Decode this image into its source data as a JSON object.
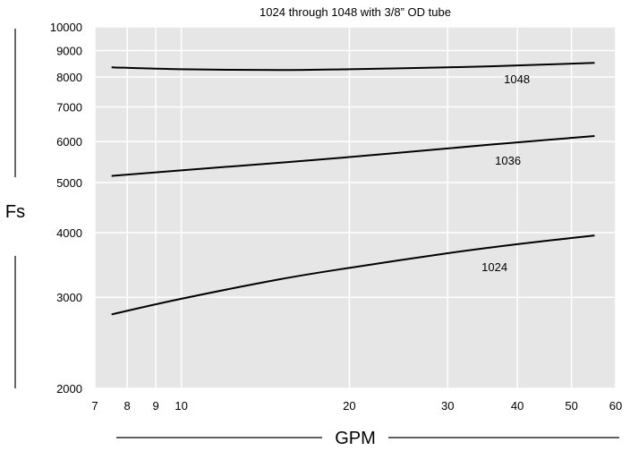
{
  "chart_data": {
    "type": "line",
    "title": "1024 through 1048 with 3/8” OD tube",
    "xlabel": "GPM",
    "ylabel": "Fs",
    "x_scale": "log",
    "y_scale": "log",
    "xlim": [
      7,
      60
    ],
    "ylim": [
      2000,
      10000
    ],
    "x_ticks": [
      7,
      8,
      9,
      10,
      20,
      30,
      40,
      50,
      60
    ],
    "y_ticks": [
      2000,
      3000,
      4000,
      5000,
      6000,
      7000,
      8000,
      9000,
      10000
    ],
    "grid": true,
    "plot_background": "#e6e6e6",
    "grid_color": "#ffffff",
    "series": [
      {
        "name": "1048",
        "color": "#000000",
        "points": [
          [
            7.5,
            8350
          ],
          [
            10,
            8280
          ],
          [
            15,
            8250
          ],
          [
            20,
            8280
          ],
          [
            30,
            8350
          ],
          [
            40,
            8420
          ],
          [
            55,
            8520
          ]
        ]
      },
      {
        "name": "1036",
        "color": "#000000",
        "points": [
          [
            7.5,
            5150
          ],
          [
            10,
            5280
          ],
          [
            15,
            5460
          ],
          [
            20,
            5600
          ],
          [
            30,
            5820
          ],
          [
            40,
            5980
          ],
          [
            55,
            6150
          ]
        ]
      },
      {
        "name": "1024",
        "color": "#000000",
        "points": [
          [
            7.5,
            2780
          ],
          [
            10,
            2980
          ],
          [
            15,
            3250
          ],
          [
            20,
            3420
          ],
          [
            30,
            3650
          ],
          [
            40,
            3800
          ],
          [
            55,
            3950
          ]
        ]
      }
    ]
  }
}
